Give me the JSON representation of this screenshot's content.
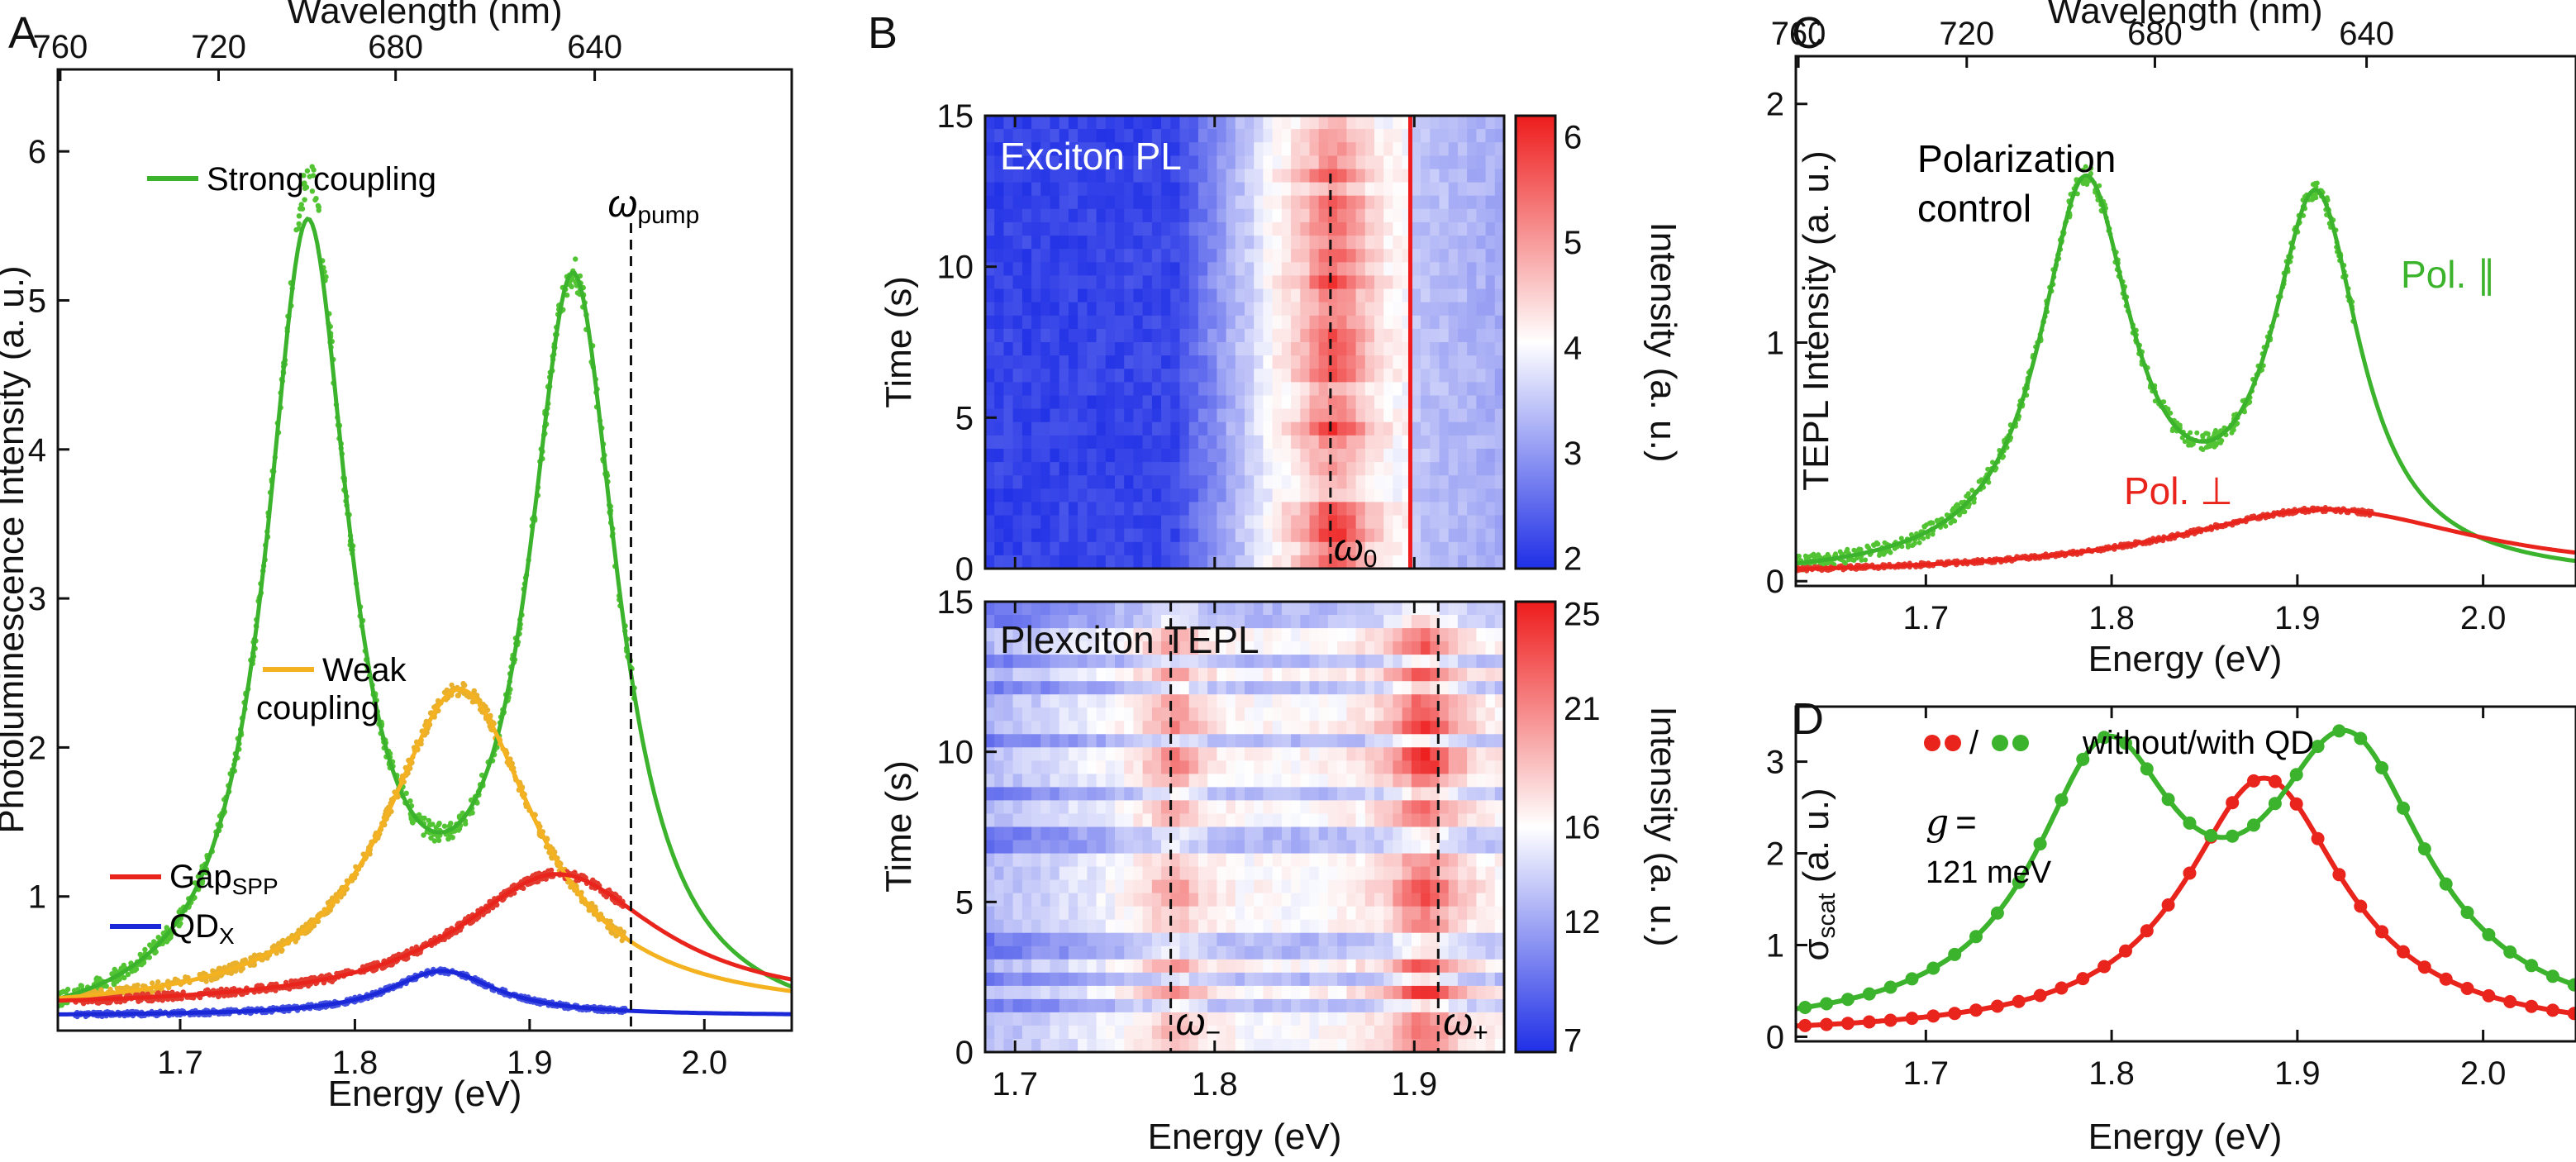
{
  "colors": {
    "green": "#3cb32c",
    "yellow": "#f4b120",
    "red": "#e8241c",
    "blue": "#1a28d8",
    "green_dot": "#52c434",
    "red_dot": "#e33a30",
    "blue_dot": "#4450e0",
    "yellow_dot": "#e9b02e"
  },
  "panels": {
    "a": "A",
    "b": "B",
    "c": "C",
    "d": "D"
  },
  "chart_data": [
    {
      "panel": "A",
      "type": "line",
      "xlabel": "Energy (eV)",
      "ylabel": "Photoluminescence Intensity (a. u.)",
      "top_xlabel": "Wavelength (nm)",
      "xlim": [
        1.63,
        2.05
      ],
      "ylim": [
        0.1,
        6.55
      ],
      "xticks": [
        "1.7",
        "1.8",
        "1.9",
        "2.0"
      ],
      "xtick_values": [
        1.7,
        1.8,
        1.9,
        2.0
      ],
      "yticks": [
        "1",
        "2",
        "3",
        "4",
        "5",
        "6"
      ],
      "ytick_values": [
        1,
        2,
        3,
        4,
        5,
        6
      ],
      "top_ticks": [
        "760",
        "720",
        "680",
        "640"
      ],
      "top_tick_values": [
        760,
        720,
        680,
        640
      ],
      "pump": {
        "energy": 1.958,
        "label": "ω",
        "sub": "pump"
      },
      "legend": {
        "strong": "Strong coupling",
        "weak_1": "Weak",
        "weak_2": "coupling",
        "gap": "Gap",
        "gap_sub": "SPP",
        "qd": "QD",
        "qd_sub": "X"
      },
      "series": [
        {
          "name": "Strong coupling",
          "peaks": [
            {
              "x0": 1.773,
              "w": 0.058,
              "a": 5.3
            },
            {
              "x0": 1.925,
              "w": 0.062,
              "a": 4.95
            }
          ],
          "base": 0.05,
          "data_x_range": [
            1.63,
            1.96
          ],
          "data_bumps": [
            {
              "x0": 1.775,
              "a": 0.3,
              "w": 0.008
            }
          ]
        },
        {
          "name": "Weak coupling",
          "peaks": [
            {
              "x0": 1.86,
              "w": 0.105,
              "a": 2.18
            }
          ],
          "base": 0.21,
          "data_x_range": [
            1.64,
            1.955
          ]
        },
        {
          "name": "GapSPP",
          "peaks": [
            {
              "x0": 1.916,
              "w": 0.14,
              "a": 0.9
            }
          ],
          "base": 0.25,
          "data_x_range": [
            1.64,
            1.955
          ]
        },
        {
          "name": "QDX",
          "peaks": [
            {
              "x0": 1.85,
              "w": 0.075,
              "a": 0.3
            }
          ],
          "base": 0.2,
          "data_x_range": [
            1.64,
            1.955
          ]
        }
      ]
    },
    {
      "panel": "B",
      "type": "heatmap",
      "xlabel": "Energy (eV)",
      "xlim": [
        1.685,
        1.945
      ],
      "xticks": [
        "1.7",
        "1.8",
        "1.9"
      ],
      "xtick_values": [
        1.7,
        1.8,
        1.9
      ],
      "maps": [
        {
          "title": "Exciton PL",
          "ylabel": "Time (s)",
          "ylim": [
            0,
            15
          ],
          "yticks": [
            "0",
            "5",
            "10",
            "15"
          ],
          "ytick_values": [
            0,
            5,
            10,
            15
          ],
          "colorbar_label": "Intensity (a. u.)",
          "clim": [
            1.9,
            6.2
          ],
          "cticks": [
            "2",
            "3",
            "4",
            "5",
            "6"
          ],
          "ctick_values": [
            2,
            3,
            4,
            5,
            6
          ],
          "peaks": [
            {
              "x0": 1.86,
              "w": 0.032,
              "a": 1.5
            }
          ],
          "base": 3.1,
          "line_energy": 1.898,
          "marker_energy": 1.858,
          "marker_label": "ω",
          "marker_sub": "0"
        },
        {
          "title": "Plexciton TEPL",
          "ylabel": "Time (s)",
          "ylim": [
            0,
            15
          ],
          "yticks": [
            "0",
            "5",
            "10",
            "15"
          ],
          "ytick_values": [
            0,
            5,
            10,
            15
          ],
          "colorbar_label": "Intensity (a. u.)",
          "clim": [
            6.5,
            25.5
          ],
          "cticks": [
            "7",
            "12",
            "16",
            "21",
            "25"
          ],
          "ctick_values": [
            7,
            12,
            16,
            21,
            25
          ],
          "peaks": [
            {
              "x0": 1.78,
              "w": 0.025,
              "a": 3
            },
            {
              "x0": 1.905,
              "w": 0.03,
              "a": 5
            }
          ],
          "base": 15.5,
          "markers": [
            {
              "energy": 1.778,
              "label": "ω",
              "sub": "−"
            },
            {
              "energy": 1.912,
              "label": "ω",
              "sub": "+"
            }
          ]
        }
      ]
    },
    {
      "panel": "C",
      "type": "line",
      "xlabel": "Energy (eV)",
      "ylabel": "TEPL Intensity (a. u.)",
      "top_xlabel": "Wavelength (nm)",
      "xlim": [
        1.63,
        2.05
      ],
      "ylim": [
        -0.02,
        2.2
      ],
      "xticks": [
        "1.7",
        "1.8",
        "1.9",
        "2.0"
      ],
      "xtick_values": [
        1.7,
        1.8,
        1.9,
        2.0
      ],
      "yticks": [
        "0",
        "1",
        "2"
      ],
      "ytick_values": [
        0,
        1,
        2
      ],
      "top_ticks": [
        "760",
        "720",
        "680",
        "640"
      ],
      "top_tick_values": [
        760,
        720,
        680,
        640
      ],
      "title_1": "Polarization",
      "title_2": "control",
      "series": [
        {
          "name": "Pol. ∥",
          "label": "Pol. ∥",
          "peaks": [
            {
              "x0": 1.786,
              "w": 0.06,
              "a": 1.62
            },
            {
              "x0": 1.91,
              "w": 0.058,
              "a": 1.55
            }
          ],
          "base": 0.0,
          "data_x_range": [
            1.63,
            1.93
          ]
        },
        {
          "name": "Pol. ⊥",
          "label": "Pol. ⊥",
          "peaks": [
            {
              "x0": 1.915,
              "w": 0.2,
              "a": 0.28
            }
          ],
          "base": 0.02,
          "data_x_range": [
            1.63,
            1.94
          ]
        }
      ]
    },
    {
      "panel": "D",
      "type": "line",
      "xlabel": "Energy (eV)",
      "ylabel": "σ",
      "ylabel_sub": "scat",
      "ylabel_tail": " (a. u.)",
      "xlim": [
        1.63,
        2.05
      ],
      "ylim": [
        -0.05,
        3.6
      ],
      "xticks": [
        "1.7",
        "1.8",
        "1.9",
        "2.0"
      ],
      "xtick_values": [
        1.7,
        1.8,
        1.9,
        2.0
      ],
      "yticks": [
        "0",
        "1",
        "2",
        "3"
      ],
      "ytick_values": [
        0,
        1,
        2,
        3
      ],
      "legend": {
        "slash": "/",
        "text": "without/with QD"
      },
      "coupling_1": "g =",
      "coupling_2": "121 meV",
      "series": [
        {
          "name": "without QD",
          "peaks": [
            {
              "x0": 1.882,
              "w": 0.105,
              "a": 2.82
            }
          ],
          "base": 0.0
        },
        {
          "name": "with QD",
          "peaks": [
            {
              "x0": 1.797,
              "w": 0.095,
              "a": 2.85
            },
            {
              "x0": 1.927,
              "w": 0.105,
              "a": 3.0
            }
          ],
          "base": 0.0
        }
      ]
    }
  ]
}
